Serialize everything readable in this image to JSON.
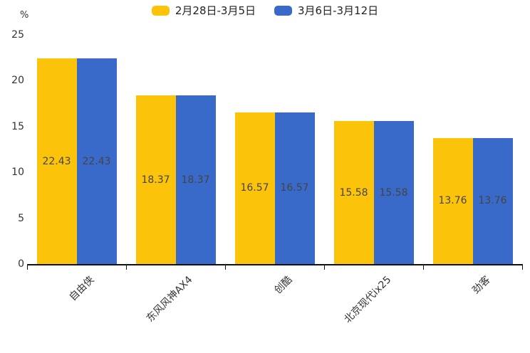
{
  "chart_data": {
    "type": "bar",
    "unit_label": "%",
    "categories": [
      "自由侠",
      "东风风神AX4",
      "创酷",
      "北京现代ix25",
      "劲客"
    ],
    "series": [
      {
        "name": "2月28日-3月5日",
        "color": "#FCC30B",
        "values": [
          22.43,
          18.37,
          16.57,
          15.58,
          13.76
        ]
      },
      {
        "name": "3月6日-3月12日",
        "color": "#3A6AC9",
        "values": [
          22.43,
          18.37,
          16.57,
          15.58,
          13.76
        ]
      }
    ],
    "ylim": [
      0,
      25
    ],
    "yticks": [
      0,
      5,
      10,
      15,
      20,
      25
    ],
    "grid": false,
    "legend_position": "top",
    "value_labels": "inside-middle",
    "xlabel": "",
    "ylabel": "",
    "title": ""
  }
}
